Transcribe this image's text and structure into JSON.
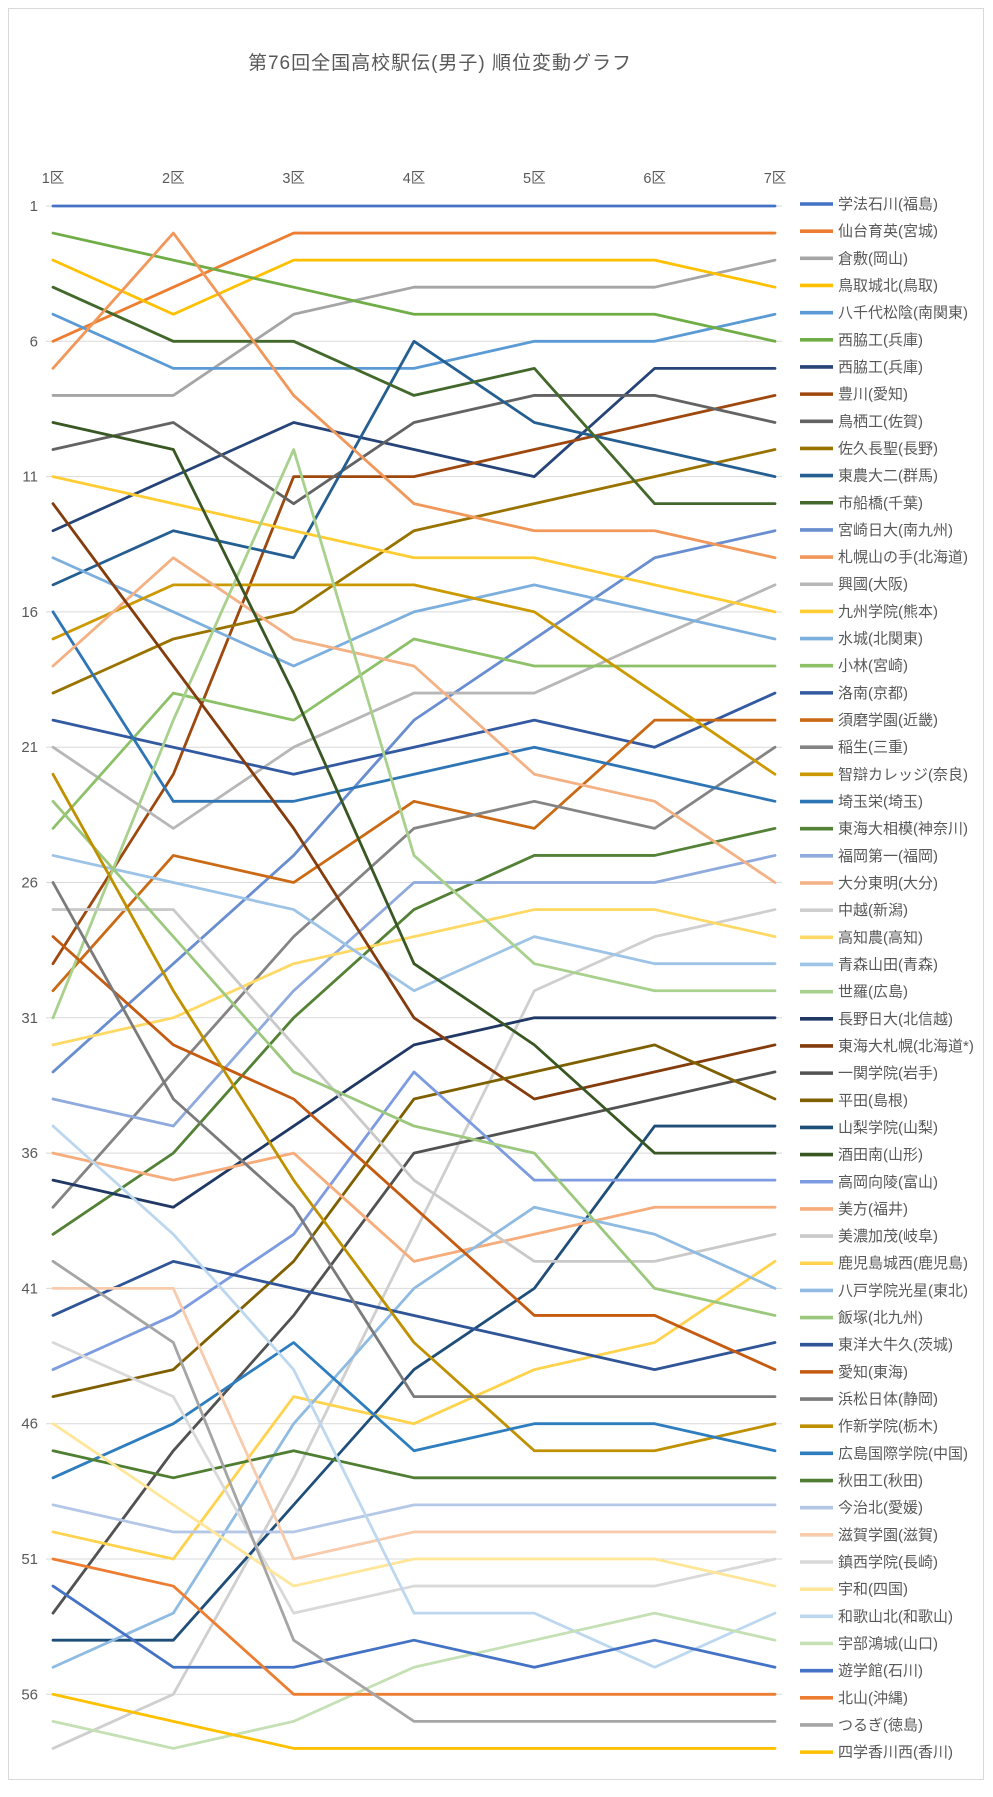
{
  "colors": {
    "background": "#FFFFFF",
    "frame_border": "#D9D9D9",
    "gridline": "#D9D9D9",
    "title_text": "#595959",
    "axis_text": "#595959",
    "legend_text": "#595959"
  },
  "chart_data": {
    "type": "line",
    "variant": "bump-rank-chart",
    "title": "第76回全国高校駅伝(男子) 順位変動グラフ",
    "xlabel": "",
    "ylabel": "",
    "x_categories": [
      "1区",
      "2区",
      "3区",
      "4区",
      "5区",
      "6区",
      "7区"
    ],
    "y_axis": {
      "ticks": [
        1,
        6,
        11,
        16,
        21,
        26,
        31,
        36,
        41,
        46,
        51,
        56
      ],
      "min": 1,
      "max": 58,
      "inverted": true
    },
    "grid": true,
    "legend_position": "right",
    "note": "Rank at each leg (1区-7区); values estimated from the figure; legend order = final standing",
    "series": [
      {
        "name": "学法石川(福島)",
        "color": "#4472C4",
        "ranks": [
          1,
          1,
          1,
          1,
          1,
          1,
          1
        ]
      },
      {
        "name": "仙台育英(宮城)",
        "color": "#ED7D31",
        "ranks": [
          6,
          5,
          2,
          2,
          2,
          2,
          2
        ]
      },
      {
        "name": "倉敷(岡山)",
        "color": "#A5A5A5",
        "ranks": [
          8,
          8,
          5,
          4,
          4,
          4,
          3
        ]
      },
      {
        "name": "鳥取城北(鳥取)",
        "color": "#FFC000",
        "ranks": [
          3,
          5,
          3,
          3,
          3,
          3,
          4
        ]
      },
      {
        "name": "八千代松陰(南関東)",
        "color": "#5B9BD5",
        "ranks": [
          5,
          7,
          8,
          7,
          6,
          6,
          5
        ]
      },
      {
        "name": "西脇工(兵庫)",
        "color": "#70AD47",
        "ranks": [
          2,
          3,
          4,
          5,
          5,
          5,
          6
        ]
      },
      {
        "name": "西脇工(兵庫)",
        "color": "#264478",
        "ranks": [
          13,
          11,
          9,
          10,
          11,
          8,
          7
        ]
      },
      {
        "name": "豊川(愛知)",
        "color": "#9E480E",
        "ranks": [
          29,
          22,
          12,
          11,
          10,
          9,
          8
        ]
      },
      {
        "name": "鳥栖工(佐賀)",
        "color": "#636363",
        "ranks": [
          10,
          9,
          13,
          9,
          8,
          8,
          9
        ]
      },
      {
        "name": "佐久長聖(長野)",
        "color": "#997300",
        "ranks": [
          19,
          17,
          15,
          13,
          11,
          11,
          10
        ]
      },
      {
        "name": "東農大二(群馬)",
        "color": "#255E91",
        "ranks": [
          15,
          13,
          14,
          6,
          9,
          10,
          11
        ]
      },
      {
        "name": "市船橋(千葉)",
        "color": "#43682B",
        "ranks": [
          4,
          6,
          6,
          7,
          7,
          11,
          12
        ]
      },
      {
        "name": "宮崎日大(南九州)",
        "color": "#698ED0",
        "ranks": [
          33,
          30,
          26,
          20,
          17,
          14,
          13
        ]
      },
      {
        "name": "札幌山の手(北海道)",
        "color": "#F1975A",
        "ranks": [
          7,
          2,
          8,
          11,
          12,
          13,
          14
        ]
      },
      {
        "name": "興國(大阪)",
        "color": "#B7B7B7",
        "ranks": [
          21,
          24,
          22,
          19,
          19,
          17,
          15
        ]
      },
      {
        "name": "九州学院(熊本)",
        "color": "#FFCD33",
        "ranks": [
          11,
          12,
          13,
          15,
          14,
          15,
          16
        ]
      },
      {
        "name": "水城(北関東)",
        "color": "#7CAFDD",
        "ranks": [
          14,
          16,
          17,
          17,
          15,
          16,
          17
        ]
      },
      {
        "name": "小林(宮崎)",
        "color": "#8CC168",
        "ranks": [
          24,
          19,
          19,
          18,
          18,
          18,
          18
        ]
      },
      {
        "name": "洛南(京都)",
        "color": "#335AA1",
        "ranks": [
          20,
          21,
          23,
          21,
          20,
          21,
          19
        ]
      },
      {
        "name": "須磨学園(近畿)",
        "color": "#CB6A15",
        "ranks": [
          30,
          28,
          26,
          25,
          25,
          20,
          20
        ]
      },
      {
        "name": "稲生(三重)",
        "color": "#848484",
        "ranks": [
          38,
          32,
          29,
          26,
          24,
          24,
          21
        ]
      },
      {
        "name": "智辯カレッジ(奈良)",
        "color": "#CC9900",
        "ranks": [
          17,
          15,
          14,
          16,
          16,
          19,
          22
        ]
      },
      {
        "name": "埼玉栄(埼玉)",
        "color": "#2E75B6",
        "ranks": [
          16,
          22,
          24,
          23,
          21,
          22,
          23
        ]
      },
      {
        "name": "東海大相模(神奈川)",
        "color": "#538135",
        "ranks": [
          39,
          36,
          33,
          30,
          27,
          25,
          24
        ]
      },
      {
        "name": "福岡第一(福岡)",
        "color": "#8FAADC",
        "ranks": [
          34,
          33,
          31,
          29,
          28,
          27,
          25
        ]
      },
      {
        "name": "大分東明(大分)",
        "color": "#F4B183",
        "ranks": [
          18,
          13,
          15,
          18,
          22,
          23,
          26
        ]
      },
      {
        "name": "中越(新潟)",
        "color": "#CFCFCF",
        "ranks": [
          58,
          56,
          49,
          41,
          34,
          30,
          27
        ]
      },
      {
        "name": "高知農(高知)",
        "color": "#FFD965",
        "ranks": [
          32,
          31,
          30,
          31,
          30,
          29,
          28
        ]
      },
      {
        "name": "青森山田(青森)",
        "color": "#9DC3E6",
        "ranks": [
          25,
          28,
          27,
          32,
          31,
          30,
          29
        ]
      },
      {
        "name": "世羅(広島)",
        "color": "#A9D18E",
        "ranks": [
          31,
          20,
          11,
          26,
          31,
          32,
          30
        ]
      },
      {
        "name": "長野日大(北信越)",
        "color": "#203864",
        "ranks": [
          37,
          38,
          36,
          34,
          34,
          33,
          31
        ]
      },
      {
        "name": "東海大札幌(北海道*)",
        "color": "#843C0C",
        "ranks": [
          12,
          18,
          25,
          33,
          36,
          35,
          32
        ]
      },
      {
        "name": "一関学院(岩手)",
        "color": "#525252",
        "ranks": [
          53,
          47,
          43,
          39,
          37,
          36,
          33
        ]
      },
      {
        "name": "平田(島根)",
        "color": "#7F6000",
        "ranks": [
          45,
          44,
          41,
          37,
          35,
          34,
          34
        ]
      },
      {
        "name": "山梨学院(山梨)",
        "color": "#1F4E79",
        "ranks": [
          54,
          54,
          49,
          45,
          42,
          37,
          35
        ]
      },
      {
        "name": "酒田南(山形)",
        "color": "#385723",
        "ranks": [
          9,
          10,
          18,
          31,
          34,
          37,
          36
        ]
      },
      {
        "name": "高岡向陵(富山)",
        "color": "#7C9BE0",
        "ranks": [
          44,
          42,
          40,
          36,
          39,
          38,
          37
        ]
      },
      {
        "name": "美方(福井)",
        "color": "#F6AC7B",
        "ranks": [
          36,
          37,
          38,
          42,
          41,
          39,
          38
        ]
      },
      {
        "name": "美濃加茂(岐阜)",
        "color": "#C9C9C9",
        "ranks": [
          27,
          29,
          33,
          40,
          41,
          41,
          39
        ]
      },
      {
        "name": "鹿児島城西(鹿児島)",
        "color": "#FFD34D",
        "ranks": [
          50,
          52,
          48,
          46,
          44,
          43,
          40
        ]
      },
      {
        "name": "八戸学院光星(東北)",
        "color": "#8FBBE2",
        "ranks": [
          55,
          53,
          48,
          44,
          40,
          40,
          41
        ]
      },
      {
        "name": "飯塚(北九州)",
        "color": "#9CC87E",
        "ranks": [
          23,
          29,
          34,
          38,
          38,
          41,
          42
        ]
      },
      {
        "name": "東洋大牛久(茨城)",
        "color": "#2F5597",
        "ranks": [
          42,
          41,
          42,
          44,
          43,
          44,
          43
        ]
      },
      {
        "name": "愛知(東海)",
        "color": "#C55A11",
        "ranks": [
          28,
          31,
          35,
          40,
          42,
          42,
          44
        ]
      },
      {
        "name": "浜松日体(静岡)",
        "color": "#7B7B7B",
        "ranks": [
          26,
          32,
          39,
          45,
          45,
          45,
          45
        ]
      },
      {
        "name": "作新学院(栃木)",
        "color": "#BF9000",
        "ranks": [
          22,
          30,
          38,
          44,
          47,
          47,
          46
        ]
      },
      {
        "name": "広島国際学院(中国)",
        "color": "#2D7DBF",
        "ranks": [
          48,
          46,
          45,
          46,
          46,
          46,
          47
        ]
      },
      {
        "name": "秋田工(秋田)",
        "color": "#4F7D31",
        "ranks": [
          47,
          48,
          48,
          48,
          48,
          48,
          48
        ]
      },
      {
        "name": "今治北(愛媛)",
        "color": "#B4C7E7",
        "ranks": [
          49,
          49,
          50,
          49,
          49,
          49,
          49
        ]
      },
      {
        "name": "滋賀学園(滋賀)",
        "color": "#F8CBAD",
        "ranks": [
          41,
          41,
          50,
          50,
          50,
          50,
          50
        ]
      },
      {
        "name": "鎮西学院(長崎)",
        "color": "#D9D9D9",
        "ranks": [
          43,
          45,
          52,
          53,
          52,
          52,
          51
        ]
      },
      {
        "name": "宇和(四国)",
        "color": "#FFE699",
        "ranks": [
          46,
          48,
          51,
          51,
          51,
          51,
          52
        ]
      },
      {
        "name": "和歌山北(和歌山)",
        "color": "#BDD7EE",
        "ranks": [
          35,
          40,
          47,
          53,
          53,
          55,
          53
        ]
      },
      {
        "name": "宇部鴻城(山口)",
        "color": "#C5E0B4",
        "ranks": [
          57,
          58,
          56,
          55,
          54,
          53,
          54
        ]
      },
      {
        "name": "遊学館(石川)",
        "color": "#4472C4",
        "ranks": [
          52,
          54,
          54,
          54,
          55,
          54,
          55
        ]
      },
      {
        "name": "北山(沖縄)",
        "color": "#ED7D31",
        "ranks": [
          51,
          52,
          55,
          56,
          56,
          56,
          56
        ]
      },
      {
        "name": "つるぎ(徳島)",
        "color": "#A5A5A5",
        "ranks": [
          40,
          43,
          53,
          57,
          57,
          57,
          57
        ]
      },
      {
        "name": "四学香川西(香川)",
        "color": "#FFC000",
        "ranks": [
          56,
          56,
          58,
          58,
          58,
          58,
          58
        ]
      }
    ]
  }
}
